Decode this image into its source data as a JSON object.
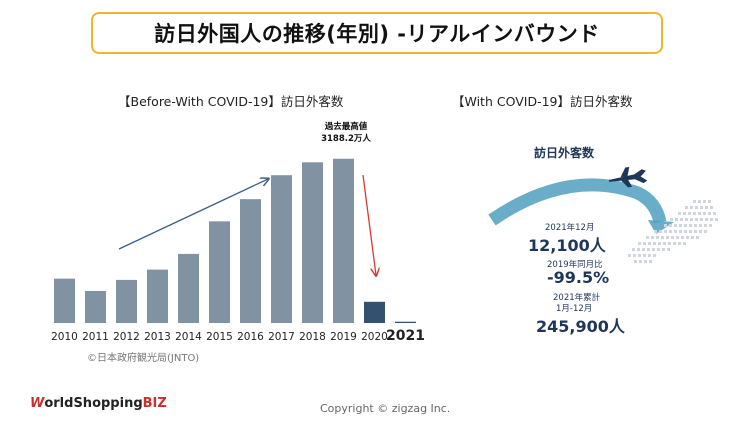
{
  "title": "訪日外国人の推移(年別) -リアルインバウンド",
  "left_section": {
    "label": "【Before-With COVID-19】訪日外客数",
    "peak_annotation_line1": "過去最高値",
    "peak_annotation_line2": "3188.2万人",
    "source": "©日本政府観光局(JNTO)"
  },
  "chart_data": {
    "type": "bar",
    "categories": [
      "2010",
      "2011",
      "2012",
      "2013",
      "2014",
      "2015",
      "2016",
      "2017",
      "2018",
      "2019",
      "2020",
      "2021"
    ],
    "values": [
      861.1,
      621.9,
      836.8,
      1036.4,
      1341.3,
      1973.7,
      2404.0,
      2869.1,
      3119.2,
      3188.2,
      411.6,
      24.6
    ],
    "ylim": [
      0,
      3300
    ],
    "unit": "万人",
    "colors": {
      "bar_main": "#8193a3",
      "bar_covid": "#34516f",
      "trend_arrow": "#3b5f86",
      "drop_arrow": "#d63a32"
    }
  },
  "right_section": {
    "label": "【With COVID-19】訪日外客数",
    "graphic_title": "訪日外客数",
    "stats": [
      {
        "label": "2021年12月",
        "value": "12,100人"
      },
      {
        "label": "2019年同月比",
        "value": "-99.5%"
      },
      {
        "label": "2021年累計",
        "sub": "1月-12月",
        "value": "245,900人"
      }
    ],
    "icons": [
      "airplane-icon",
      "japan-map-icon"
    ]
  },
  "footer": {
    "logo_w": "W",
    "logo_main": "orldShopping",
    "logo_biz": "BIZ",
    "copyright": "Copyright © zigzag Inc."
  }
}
